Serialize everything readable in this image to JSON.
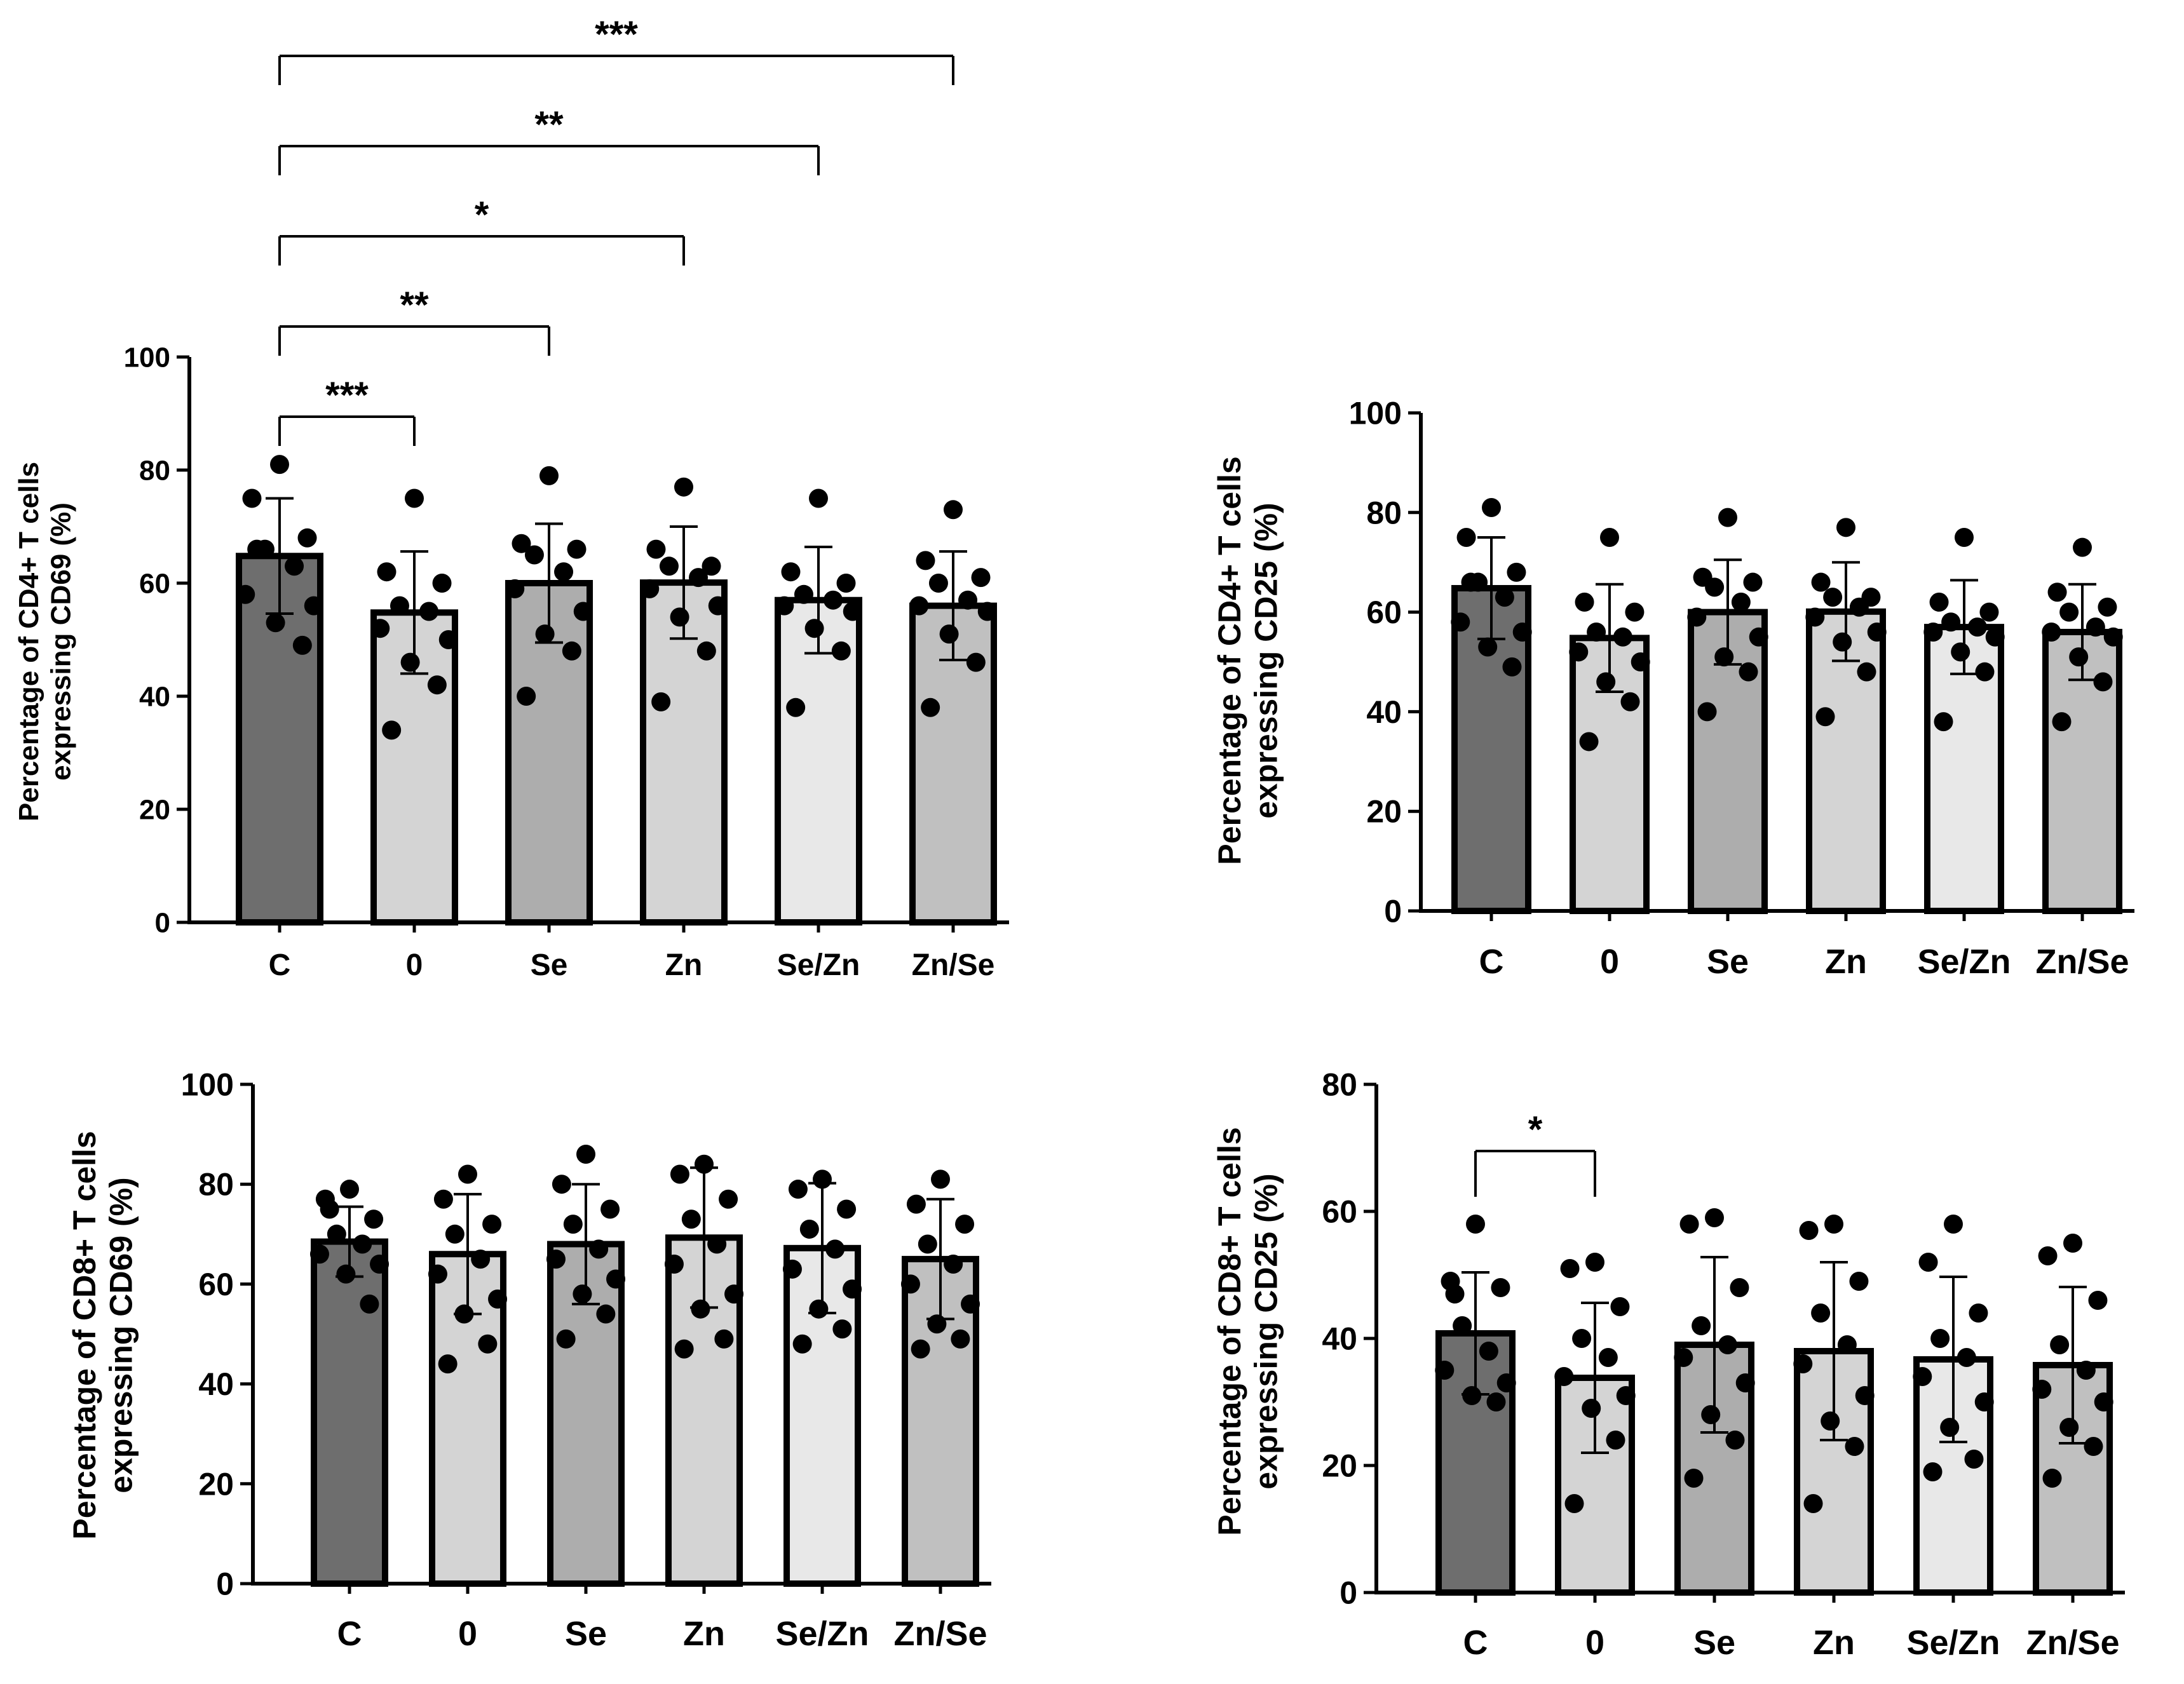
{
  "chart_data": [
    {
      "id": "cd4_cd69",
      "type": "bar",
      "ylabel": [
        "Percentage of CD4+ T cells",
        "expressing CD69 (%)"
      ],
      "categories": [
        "C",
        "0",
        "Se",
        "Zn",
        "Se/Zn",
        "Zn/Se"
      ],
      "ylim": [
        0,
        100
      ],
      "yticks": [
        0,
        20,
        40,
        60,
        80,
        100
      ],
      "ytick_labels": [
        "0",
        "20",
        "40",
        "60",
        "80",
        "100"
      ],
      "bar_colors": [
        "#6e6e6e",
        "#d4d4d4",
        "#adadad",
        "#d4d4d4",
        "#e8e8e8",
        "#c0c0c0"
      ],
      "values": [
        64.8,
        54.8,
        60.0,
        60.1,
        57.0,
        56.0
      ],
      "sd": [
        10.2,
        10.8,
        10.5,
        9.9,
        9.4,
        9.6
      ],
      "points": [
        [
          81,
          75,
          68,
          66,
          63,
          58,
          56,
          53,
          49,
          66
        ],
        [
          75,
          62,
          60,
          56,
          55,
          52,
          50,
          46,
          42,
          34
        ],
        [
          79,
          67,
          66,
          65,
          62,
          59,
          55,
          51,
          48,
          40
        ],
        [
          77,
          66,
          63,
          63,
          61,
          59,
          56,
          54,
          48,
          39
        ],
        [
          75,
          62,
          60,
          58,
          57,
          56,
          55,
          52,
          48,
          38
        ],
        [
          73,
          64,
          61,
          60,
          57,
          56,
          55,
          51,
          46,
          38
        ]
      ],
      "significance": [
        {
          "from": 0,
          "to": 1,
          "label": "***"
        },
        {
          "from": 0,
          "to": 2,
          "label": "**"
        },
        {
          "from": 0,
          "to": 3,
          "label": "*"
        },
        {
          "from": 0,
          "to": 4,
          "label": "**"
        },
        {
          "from": 0,
          "to": 5,
          "label": "***"
        }
      ]
    },
    {
      "id": "cd4_cd25",
      "type": "bar",
      "ylabel": [
        "Percentage of CD4+ T cells",
        "expressing CD25 (%)"
      ],
      "categories": [
        "C",
        "0",
        "Se",
        "Zn",
        "Se/Zn",
        "Zn/Se"
      ],
      "ylim": [
        0,
        100
      ],
      "yticks": [
        0,
        20,
        40,
        60,
        80,
        100
      ],
      "ytick_labels": [
        "0",
        "20",
        "40",
        "60",
        "80",
        "100"
      ],
      "bar_colors": [
        "#6e6e6e",
        "#d4d4d4",
        "#adadad",
        "#d4d4d4",
        "#e8e8e8",
        "#c0c0c0"
      ],
      "values": [
        64.8,
        54.8,
        60.0,
        60.1,
        57.0,
        56.0
      ],
      "sd": [
        10.2,
        10.8,
        10.5,
        9.9,
        9.4,
        9.6
      ],
      "points": [
        [
          81,
          75,
          68,
          66,
          63,
          58,
          56,
          53,
          49,
          66
        ],
        [
          75,
          62,
          60,
          56,
          55,
          52,
          50,
          46,
          42,
          34
        ],
        [
          79,
          67,
          66,
          65,
          62,
          59,
          55,
          51,
          48,
          40
        ],
        [
          77,
          66,
          63,
          63,
          61,
          59,
          56,
          54,
          48,
          39
        ],
        [
          75,
          62,
          60,
          58,
          57,
          56,
          55,
          52,
          48,
          38
        ],
        [
          73,
          64,
          61,
          60,
          57,
          56,
          55,
          51,
          46,
          38
        ]
      ],
      "significance": []
    },
    {
      "id": "cd8_cd69",
      "type": "bar",
      "ylabel": [
        "Percentage of CD8+ T cells",
        "expressing CD69 (%)"
      ],
      "categories": [
        "C",
        "0",
        "Se",
        "Zn",
        "Se/Zn",
        "Zn/Se"
      ],
      "ylim": [
        0,
        100
      ],
      "yticks": [
        0,
        20,
        40,
        60,
        80,
        100
      ],
      "ytick_labels": [
        "0",
        "20",
        "40",
        "60",
        "80",
        "100"
      ],
      "bar_colors": [
        "#6e6e6e",
        "#d4d4d4",
        "#adadad",
        "#d4d4d4",
        "#e8e8e8",
        "#c0c0c0"
      ],
      "values": [
        68.5,
        66.0,
        68.0,
        69.3,
        67.2,
        65.0
      ],
      "sd": [
        7.0,
        12.0,
        12.0,
        14.0,
        13.0,
        12.0
      ],
      "points": [
        [
          79,
          77,
          73,
          70,
          68,
          66,
          64,
          62,
          56,
          75
        ],
        [
          82,
          77,
          72,
          70,
          65,
          62,
          57,
          54,
          48,
          44
        ],
        [
          86,
          80,
          75,
          72,
          67,
          65,
          61,
          58,
          54,
          49
        ],
        [
          84,
          82,
          77,
          73,
          68,
          64,
          58,
          55,
          49,
          47
        ],
        [
          81,
          79,
          75,
          71,
          67,
          63,
          59,
          55,
          51,
          48
        ],
        [
          81,
          76,
          72,
          68,
          64,
          60,
          56,
          52,
          49,
          47
        ]
      ],
      "significance": []
    },
    {
      "id": "cd8_cd25",
      "type": "bar",
      "ylabel": [
        "Percentage of CD8+ T cells",
        "expressing CD25 (%)"
      ],
      "categories": [
        "C",
        "0",
        "Se",
        "Zn",
        "Se/Zn",
        "Zn/Se"
      ],
      "ylim": [
        0,
        80
      ],
      "yticks": [
        0,
        20,
        40,
        60,
        80
      ],
      "ytick_labels": [
        "0",
        "20",
        "40",
        "60",
        "80"
      ],
      "bar_colors": [
        "#6e6e6e",
        "#d4d4d4",
        "#adadad",
        "#d4d4d4",
        "#e8e8e8",
        "#c0c0c0"
      ],
      "values": [
        40.8,
        33.8,
        39.0,
        38.0,
        36.7,
        35.8
      ],
      "sd": [
        9.6,
        11.8,
        13.8,
        14.0,
        13.0,
        12.3
      ],
      "points": [
        [
          58,
          49,
          48,
          42,
          38,
          35,
          33,
          31,
          30,
          47
        ],
        [
          52,
          51,
          45,
          40,
          37,
          34,
          31,
          29,
          24,
          14
        ],
        [
          59,
          58,
          48,
          42,
          39,
          37,
          33,
          28,
          24,
          18
        ],
        [
          58,
          57,
          49,
          44,
          39,
          36,
          31,
          27,
          23,
          14
        ],
        [
          58,
          52,
          44,
          40,
          37,
          34,
          30,
          26,
          21,
          19
        ],
        [
          55,
          53,
          46,
          39,
          35,
          32,
          30,
          26,
          23,
          18
        ]
      ],
      "significance": [
        {
          "from": 0,
          "to": 1,
          "label": "*"
        }
      ]
    }
  ]
}
